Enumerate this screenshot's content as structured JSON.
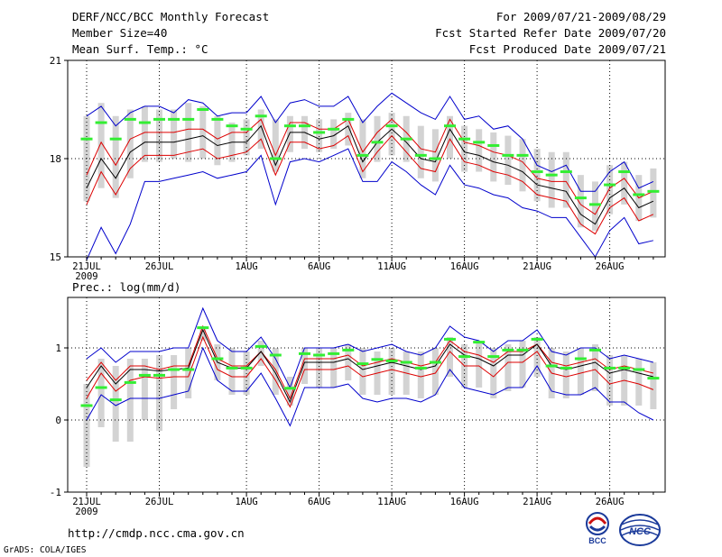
{
  "header": {
    "title": "DERF/NCC/BCC Monthly Forecast",
    "member_size": "Member Size=40",
    "period": "For 2009/07/21-2009/08/29",
    "refer_date": "Fcst Started Refer Date 2009/07/20",
    "produced_date": "Fcst Produced Date 2009/07/21"
  },
  "footer": {
    "url": "http://cmdp.ncc.cma.gov.cn",
    "grads_credit": "GrADS: COLA/IGES",
    "logo_bcc": "BCC",
    "logo_ncc": "NCC"
  },
  "colors": {
    "spread_box": "#d3d3d3",
    "median": "#33ee33",
    "mean": "#000000",
    "inner": "#dd0000",
    "outer": "#0000cc"
  },
  "chart_data": [
    {
      "type": "line",
      "title": "Mean Surf. Temp.: °C",
      "x_tick_labels": [
        "21JUL",
        "26JUL",
        "1AUG",
        "6AUG",
        "11AUG",
        "16AUG",
        "21AUG",
        "26AUG"
      ],
      "x_tick_days": [
        0,
        5,
        11,
        16,
        21,
        26,
        31,
        36
      ],
      "x_year_label": "2009",
      "ylim": [
        15,
        21
      ],
      "yticks": [
        15,
        18,
        21
      ],
      "days": 40,
      "series": [
        {
          "name": "outer_high",
          "values": [
            19.3,
            19.6,
            19.0,
            19.4,
            19.6,
            19.6,
            19.4,
            19.8,
            19.7,
            19.3,
            19.4,
            19.4,
            19.9,
            19.1,
            19.7,
            19.8,
            19.6,
            19.6,
            19.9,
            19.1,
            19.6,
            20.0,
            19.7,
            19.4,
            19.2,
            19.9,
            19.2,
            19.3,
            18.9,
            19.0,
            18.6,
            17.8,
            17.6,
            17.8,
            17.0,
            17.0,
            17.6,
            17.9,
            17.1,
            17.3
          ]
        },
        {
          "name": "inner_high",
          "values": [
            17.5,
            18.5,
            17.8,
            18.6,
            18.8,
            18.8,
            18.8,
            18.9,
            18.9,
            18.6,
            18.8,
            18.8,
            19.2,
            18.1,
            19.1,
            19.1,
            18.9,
            18.9,
            19.2,
            18.2,
            18.8,
            19.2,
            18.8,
            18.3,
            18.2,
            19.2,
            18.5,
            18.4,
            18.2,
            18.1,
            17.9,
            17.4,
            17.3,
            17.3,
            16.6,
            16.3,
            17.1,
            17.4,
            16.8,
            17.0
          ]
        },
        {
          "name": "mean",
          "values": [
            17.1,
            18.0,
            17.4,
            18.2,
            18.5,
            18.5,
            18.5,
            18.6,
            18.7,
            18.4,
            18.5,
            18.5,
            19.0,
            17.8,
            18.8,
            18.8,
            18.6,
            18.7,
            19.0,
            17.9,
            18.5,
            18.9,
            18.5,
            18.0,
            17.9,
            18.9,
            18.2,
            18.1,
            17.9,
            17.8,
            17.6,
            17.2,
            17.1,
            17.0,
            16.3,
            16.0,
            16.8,
            17.1,
            16.5,
            16.7
          ]
        },
        {
          "name": "inner_low",
          "values": [
            16.6,
            17.6,
            16.9,
            17.7,
            18.1,
            18.1,
            18.1,
            18.2,
            18.3,
            18.0,
            18.1,
            18.2,
            18.6,
            17.5,
            18.5,
            18.5,
            18.3,
            18.4,
            18.7,
            17.6,
            18.2,
            18.7,
            18.2,
            17.7,
            17.6,
            18.6,
            17.9,
            17.8,
            17.6,
            17.5,
            17.3,
            16.9,
            16.8,
            16.7,
            16.0,
            15.7,
            16.5,
            16.8,
            16.1,
            16.3
          ]
        },
        {
          "name": "outer_low",
          "values": [
            14.9,
            15.9,
            15.1,
            16.0,
            17.3,
            17.3,
            17.4,
            17.5,
            17.6,
            17.4,
            17.5,
            17.6,
            18.1,
            16.6,
            17.9,
            18.0,
            17.9,
            18.1,
            18.3,
            17.3,
            17.3,
            17.9,
            17.6,
            17.2,
            16.9,
            17.8,
            17.2,
            17.1,
            16.9,
            16.8,
            16.5,
            16.4,
            16.2,
            16.2,
            15.6,
            15.0,
            15.8,
            16.2,
            15.4,
            15.5
          ]
        },
        {
          "name": "median",
          "values": [
            18.6,
            19.1,
            18.6,
            19.2,
            19.1,
            19.2,
            19.2,
            19.2,
            19.5,
            19.2,
            19.0,
            18.9,
            19.3,
            18.0,
            19.0,
            19.0,
            18.8,
            18.9,
            19.2,
            18.1,
            18.5,
            19.0,
            18.6,
            18.1,
            18.0,
            19.0,
            18.6,
            18.5,
            18.4,
            18.1,
            18.1,
            17.6,
            17.5,
            17.6,
            16.8,
            16.6,
            17.2,
            17.6,
            16.9,
            17.0
          ]
        },
        {
          "name": "box_high",
          "values": [
            19.3,
            19.7,
            19.3,
            19.5,
            19.6,
            19.5,
            19.5,
            19.7,
            19.6,
            19.3,
            19.1,
            19.2,
            19.5,
            19.2,
            19.3,
            19.3,
            19.2,
            19.2,
            19.4,
            19.2,
            19.3,
            19.4,
            19.3,
            19.0,
            18.9,
            19.3,
            19.0,
            18.9,
            18.8,
            18.7,
            18.6,
            18.3,
            18.2,
            18.2,
            17.5,
            17.3,
            17.8,
            17.9,
            17.5,
            17.7
          ]
        },
        {
          "name": "box_low",
          "values": [
            16.7,
            17.1,
            16.8,
            17.4,
            17.9,
            17.9,
            18.0,
            17.9,
            18.0,
            17.8,
            17.9,
            18.1,
            18.3,
            17.6,
            18.2,
            18.3,
            18.2,
            18.3,
            18.4,
            17.4,
            17.9,
            18.1,
            17.9,
            17.4,
            17.3,
            18.0,
            17.6,
            17.6,
            17.3,
            17.2,
            17.0,
            16.7,
            16.5,
            16.5,
            15.9,
            15.8,
            16.3,
            16.6,
            16.1,
            16.2
          ]
        }
      ]
    },
    {
      "type": "line",
      "title": "Prec.: log(mm/d)",
      "x_tick_labels": [
        "21JUL",
        "26JUL",
        "1AUG",
        "6AUG",
        "11AUG",
        "16AUG",
        "21AUG",
        "26AUG"
      ],
      "x_tick_days": [
        0,
        5,
        11,
        16,
        21,
        26,
        31,
        36
      ],
      "x_year_label": "2009",
      "ylim": [
        -1,
        1.7
      ],
      "yticks": [
        -1,
        0,
        1
      ],
      "days": 40,
      "series": [
        {
          "name": "outer_high",
          "values": [
            0.85,
            1.0,
            0.8,
            0.95,
            0.95,
            0.95,
            1.0,
            1.0,
            1.55,
            1.1,
            0.95,
            0.95,
            1.15,
            0.85,
            0.45,
            1.0,
            1.0,
            1.0,
            1.05,
            0.95,
            1.0,
            1.05,
            0.95,
            0.9,
            1.0,
            1.3,
            1.15,
            1.1,
            0.95,
            1.1,
            1.1,
            1.25,
            0.95,
            0.9,
            1.0,
            1.0,
            0.85,
            0.9,
            0.85,
            0.8
          ]
        },
        {
          "name": "inner_high",
          "values": [
            0.55,
            0.8,
            0.55,
            0.75,
            0.75,
            0.7,
            0.75,
            0.75,
            1.3,
            0.85,
            0.75,
            0.75,
            0.95,
            0.7,
            0.3,
            0.85,
            0.85,
            0.85,
            0.9,
            0.75,
            0.8,
            0.85,
            0.8,
            0.75,
            0.8,
            1.1,
            0.95,
            0.9,
            0.8,
            0.95,
            0.95,
            1.05,
            0.8,
            0.75,
            0.8,
            0.85,
            0.7,
            0.75,
            0.7,
            0.65
          ]
        },
        {
          "name": "mean",
          "values": [
            0.45,
            0.75,
            0.5,
            0.7,
            0.7,
            0.68,
            0.7,
            0.72,
            1.25,
            0.8,
            0.72,
            0.72,
            0.95,
            0.65,
            0.25,
            0.8,
            0.8,
            0.8,
            0.85,
            0.7,
            0.75,
            0.8,
            0.75,
            0.7,
            0.75,
            1.05,
            0.9,
            0.85,
            0.75,
            0.9,
            0.9,
            1.05,
            0.75,
            0.7,
            0.75,
            0.8,
            0.65,
            0.7,
            0.65,
            0.6
          ]
        },
        {
          "name": "inner_low",
          "values": [
            0.3,
            0.65,
            0.4,
            0.55,
            0.6,
            0.58,
            0.6,
            0.6,
            1.15,
            0.7,
            0.6,
            0.6,
            0.85,
            0.55,
            0.18,
            0.7,
            0.7,
            0.7,
            0.75,
            0.6,
            0.65,
            0.7,
            0.65,
            0.6,
            0.65,
            0.95,
            0.75,
            0.75,
            0.6,
            0.8,
            0.8,
            0.95,
            0.65,
            0.6,
            0.65,
            0.7,
            0.5,
            0.55,
            0.5,
            0.42
          ]
        },
        {
          "name": "outer_low",
          "values": [
            0.0,
            0.35,
            0.2,
            0.3,
            0.3,
            0.3,
            0.35,
            0.4,
            1.0,
            0.55,
            0.4,
            0.4,
            0.65,
            0.3,
            -0.08,
            0.45,
            0.45,
            0.45,
            0.5,
            0.3,
            0.25,
            0.3,
            0.3,
            0.25,
            0.35,
            0.7,
            0.45,
            0.4,
            0.35,
            0.45,
            0.45,
            0.75,
            0.4,
            0.35,
            0.35,
            0.45,
            0.25,
            0.25,
            0.1,
            0.0
          ]
        },
        {
          "name": "median",
          "values": [
            0.2,
            0.45,
            0.28,
            0.52,
            0.62,
            0.62,
            0.7,
            0.7,
            1.28,
            0.85,
            0.72,
            0.72,
            1.02,
            0.9,
            0.44,
            0.92,
            0.9,
            0.92,
            0.97,
            0.78,
            0.84,
            0.82,
            0.8,
            0.72,
            0.8,
            1.12,
            0.88,
            1.08,
            0.88,
            0.97,
            0.97,
            1.12,
            0.75,
            0.72,
            0.85,
            0.97,
            0.72,
            0.72,
            0.7,
            0.58
          ]
        },
        {
          "name": "box_high",
          "values": [
            0.5,
            0.85,
            0.75,
            0.85,
            0.85,
            0.9,
            0.9,
            1.0,
            1.3,
            1.05,
            1.0,
            0.95,
            1.1,
            1.0,
            0.6,
            1.0,
            1.0,
            1.0,
            1.05,
            1.0,
            0.95,
            1.0,
            0.95,
            0.95,
            1.0,
            1.15,
            1.05,
            1.1,
            1.0,
            1.05,
            1.1,
            1.15,
            1.0,
            0.95,
            1.0,
            1.05,
            0.9,
            0.9,
            0.85,
            0.8
          ]
        },
        {
          "name": "box_low",
          "values": [
            -0.65,
            -0.1,
            -0.3,
            -0.3,
            0.0,
            -0.15,
            0.15,
            0.3,
            1.1,
            0.55,
            0.35,
            0.35,
            0.75,
            0.35,
            0.2,
            0.5,
            0.45,
            0.45,
            0.55,
            0.35,
            0.35,
            0.35,
            0.35,
            0.3,
            0.35,
            0.6,
            0.45,
            0.45,
            0.3,
            0.4,
            0.45,
            0.6,
            0.3,
            0.3,
            0.35,
            0.4,
            0.2,
            0.2,
            0.2,
            0.15
          ]
        }
      ]
    }
  ]
}
